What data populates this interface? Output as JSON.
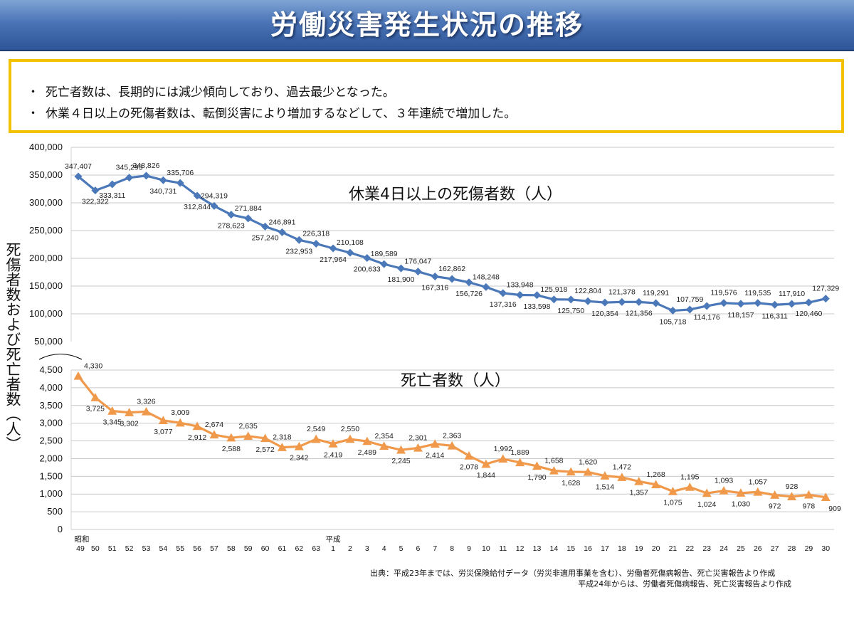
{
  "title": "労働災害発生状況の推移",
  "summary": [
    "死亡者数は、長期的には減少傾向しており、過去最少となった。",
    "休業４日以上の死傷者数は、転倒災害により増加するなどして、３年連続で増加した。"
  ],
  "bullet": "・",
  "y_axis_label": "死傷者数および死亡者数（人）",
  "source": {
    "line1": "出典：平成23年までは、労災保険給付データ（労災非適用事業を含む）、労働者死傷病報告、死亡災害報告より作成",
    "line2": "平成24年からは、労働者死傷病報告、死亡災害報告より作成"
  },
  "colors": {
    "injuries": "#4a78b8",
    "deaths": "#f0994b",
    "title_bar": "#3a64a8",
    "box_border": "#f2c200"
  },
  "chart_data": [
    {
      "type": "line",
      "title": "休業4日以上の死傷者数（人）",
      "ylim": [
        50000,
        400000
      ],
      "y_ticks": [
        "400,000",
        "350,000",
        "300,000",
        "250,000",
        "200,000",
        "150,000",
        "100,000",
        "50,000"
      ],
      "x": [
        "昭和49",
        "50",
        "51",
        "52",
        "53",
        "54",
        "55",
        "56",
        "57",
        "58",
        "59",
        "60",
        "61",
        "62",
        "63",
        "平成1",
        "2",
        "3",
        "4",
        "5",
        "6",
        "7",
        "8",
        "9",
        "10",
        "11",
        "12",
        "13",
        "14",
        "15",
        "16",
        "17",
        "18",
        "19",
        "20",
        "21",
        "22",
        "23",
        "24",
        "25",
        "26",
        "27",
        "28",
        "29",
        "30"
      ],
      "values": [
        347407,
        322322,
        333311,
        345293,
        348826,
        340731,
        335706,
        312844,
        294319,
        278623,
        271884,
        257240,
        246891,
        232953,
        226318,
        217964,
        210108,
        200633,
        189589,
        181900,
        176047,
        167316,
        162862,
        156726,
        148248,
        137316,
        133948,
        133598,
        125918,
        125750,
        122804,
        120354,
        121378,
        121356,
        119291,
        105718,
        107759,
        114176,
        119576,
        118157,
        119535,
        116311,
        117910,
        120460,
        127329
      ],
      "labels": [
        "347,407",
        "322,322",
        "333,311",
        "345,293",
        "348,826",
        "340,731",
        "335,706",
        "312,844",
        "294,319",
        "278,623",
        "271,884",
        "257,240",
        "246,891",
        "232,953",
        "226,318",
        "217,964",
        "210,108",
        "200,633",
        "189,589",
        "181,900",
        "176,047",
        "167,316",
        "162,862",
        "156,726",
        "148,248",
        "137,316",
        "133,948",
        "133,598",
        "125,918",
        "125,750",
        "122,804",
        "120,354",
        "121,378",
        "121,356",
        "119,291",
        "105,718",
        "107,759",
        "114,176",
        "119,576",
        "118,157",
        "119,535",
        "116,311",
        "117,910",
        "120,460",
        "127,329"
      ],
      "grid": true,
      "marker": "diamond"
    },
    {
      "type": "line",
      "title": "死亡者数（人）",
      "ylim": [
        0,
        4500
      ],
      "y_ticks": [
        "4,500",
        "4,000",
        "3,500",
        "3,000",
        "2,500",
        "2,000",
        "1,500",
        "1,000",
        "500",
        "0"
      ],
      "x": [
        "昭和49",
        "50",
        "51",
        "52",
        "53",
        "54",
        "55",
        "56",
        "57",
        "58",
        "59",
        "60",
        "61",
        "62",
        "63",
        "平成1",
        "2",
        "3",
        "4",
        "5",
        "6",
        "7",
        "8",
        "9",
        "10",
        "11",
        "12",
        "13",
        "14",
        "15",
        "16",
        "17",
        "18",
        "19",
        "20",
        "21",
        "22",
        "23",
        "24",
        "25",
        "26",
        "27",
        "28",
        "29",
        "30"
      ],
      "values": [
        4330,
        3725,
        3345,
        3302,
        3326,
        3077,
        3009,
        2912,
        2674,
        2588,
        2635,
        2572,
        2318,
        2342,
        2549,
        2419,
        2550,
        2489,
        2354,
        2245,
        2301,
        2414,
        2363,
        2078,
        1844,
        1992,
        1889,
        1790,
        1658,
        1628,
        1620,
        1514,
        1472,
        1357,
        1268,
        1075,
        1195,
        1024,
        1093,
        1030,
        1057,
        972,
        928,
        978,
        909
      ],
      "labels": [
        "4,330",
        "3,725",
        "3,345",
        "3,302",
        "3,326",
        "3,077",
        "3,009",
        "2,912",
        "2,674",
        "2,588",
        "2,635",
        "2,572",
        "2,318",
        "2,342",
        "2,549",
        "2,419",
        "2,550",
        "2,489",
        "2,354",
        "2,245",
        "2,301",
        "2,414",
        "2,363",
        "2,078",
        "1,844",
        "1,992",
        "1,889",
        "1,790",
        "1,658",
        "1,628",
        "1,620",
        "1,514",
        "1,472",
        "1,357",
        "1,268",
        "1,075",
        "1,195",
        "1,024",
        "1,093",
        "1,030",
        "1,057",
        "972",
        "928",
        "978",
        "909"
      ],
      "grid": true,
      "marker": "triangle"
    }
  ],
  "x_axis_rows": {
    "era_top": [
      {
        "index": 0,
        "text": "昭和"
      },
      {
        "index": 15,
        "text": "平成"
      }
    ],
    "bottom": [
      "49",
      "50",
      "51",
      "52",
      "53",
      "54",
      "55",
      "56",
      "57",
      "58",
      "59",
      "60",
      "61",
      "62",
      "63",
      "1",
      "2",
      "3",
      "4",
      "5",
      "6",
      "7",
      "8",
      "9",
      "10",
      "11",
      "12",
      "13",
      "14",
      "15",
      "16",
      "17",
      "18",
      "19",
      "20",
      "21",
      "22",
      "23",
      "24",
      "25",
      "26",
      "27",
      "28",
      "29",
      "30"
    ]
  }
}
